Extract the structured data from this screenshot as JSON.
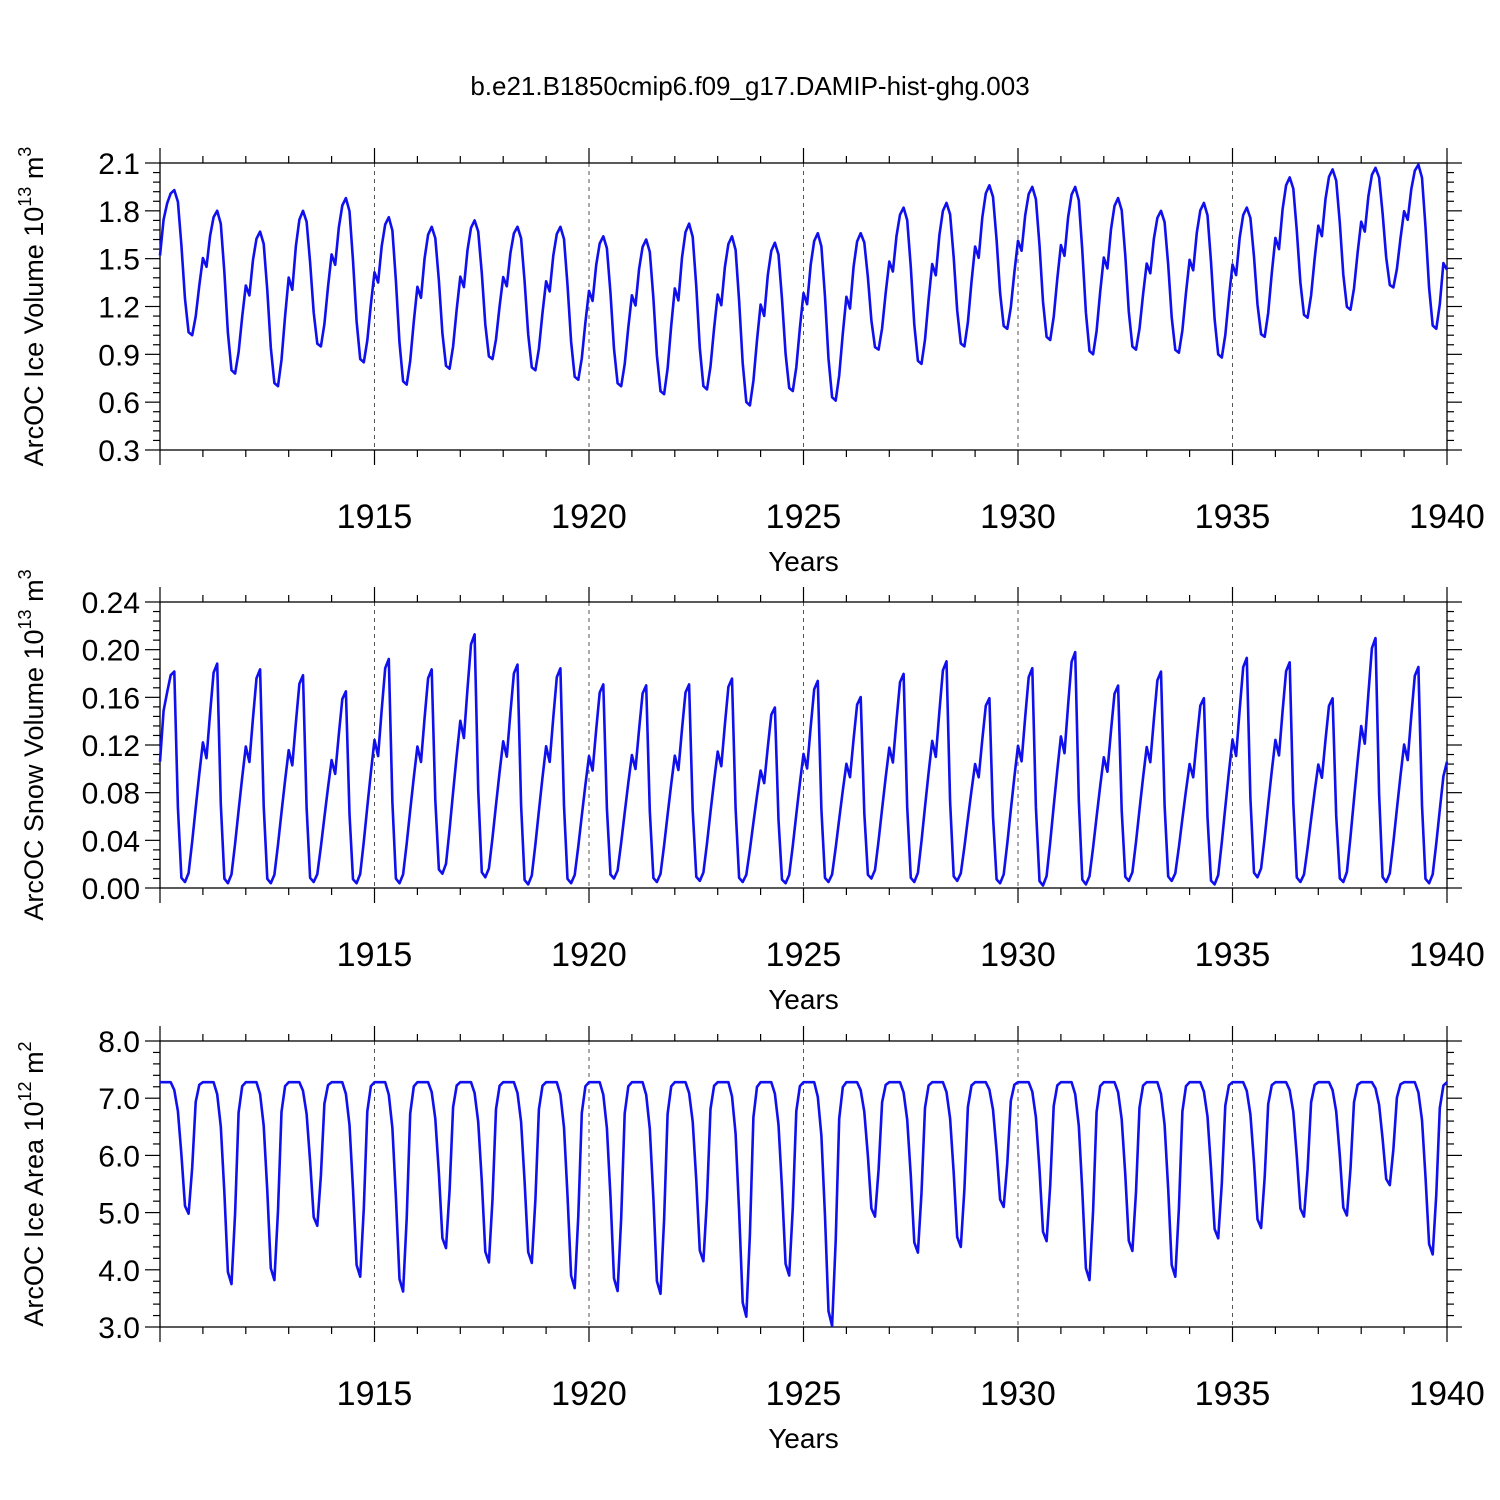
{
  "title": "b.e21.B1850cmip6.f09_g17.DAMIP-hist-ghg.003",
  "chart_data": [
    {
      "type": "line",
      "name": "ice-volume",
      "ylabel": "ArcOC Ice Volume 10",
      "ylabel_exp": "13",
      "ylabel_unit": "m",
      "ylabel_unit_exp": "3",
      "xlabel": "Years",
      "xlim": [
        1910,
        1940
      ],
      "ylim": [
        0.3,
        2.1
      ],
      "xticks": [
        "1915",
        "1920",
        "1925",
        "1930",
        "1935",
        "1940"
      ],
      "yticks": [
        "0.3",
        "0.6",
        "0.9",
        "1.2",
        "1.5",
        "1.8",
        "2.1"
      ],
      "grid": "dashed vertical at 5-year ticks",
      "color": "#1010ee",
      "series": [
        {
          "name": "Ice Volume",
          "cycle_max": [
            1.93,
            1.8,
            1.67,
            1.8,
            1.88,
            1.76,
            1.7,
            1.74,
            1.7,
            1.7,
            1.64,
            1.62,
            1.72,
            1.64,
            1.6,
            1.66,
            1.66,
            1.82,
            1.85,
            1.96,
            1.95,
            1.95,
            1.88,
            1.8,
            1.85,
            1.82,
            2.01,
            2.06,
            2.07,
            2.09
          ],
          "cycle_min": [
            1.02,
            0.78,
            0.7,
            0.95,
            0.85,
            0.71,
            0.81,
            0.87,
            0.8,
            0.74,
            0.7,
            0.65,
            0.68,
            0.58,
            0.67,
            0.61,
            0.93,
            0.84,
            0.95,
            1.06,
            0.99,
            0.9,
            0.93,
            0.91,
            0.88,
            1.01,
            1.13,
            1.18,
            1.32,
            1.06
          ],
          "start": 1.52,
          "end": 1.43
        }
      ]
    },
    {
      "type": "line",
      "name": "snow-volume",
      "ylabel": "ArcOC Snow Volume 10",
      "ylabel_exp": "13",
      "ylabel_unit": "m",
      "ylabel_unit_exp": "3",
      "xlabel": "Years",
      "xlim": [
        1910,
        1940
      ],
      "ylim": [
        0.0,
        0.24
      ],
      "xticks": [
        "1915",
        "1920",
        "1925",
        "1930",
        "1935",
        "1940"
      ],
      "yticks": [
        "0.00",
        "0.04",
        "0.08",
        "0.12",
        "0.16",
        "0.20",
        "0.24"
      ],
      "grid": "dashed vertical at 5-year ticks",
      "color": "#1010ee",
      "series": [
        {
          "name": "Snow Volume",
          "cycle_max": [
            0.184,
            0.194,
            0.189,
            0.184,
            0.17,
            0.198,
            0.189,
            0.219,
            0.193,
            0.19,
            0.176,
            0.175,
            0.176,
            0.181,
            0.156,
            0.179,
            0.165,
            0.185,
            0.196,
            0.164,
            0.19,
            0.204,
            0.175,
            0.187,
            0.164,
            0.199,
            0.195,
            0.164,
            0.216,
            0.191
          ],
          "cycle_min": [
            0.005,
            0.004,
            0.004,
            0.005,
            0.004,
            0.004,
            0.012,
            0.009,
            0.003,
            0.004,
            0.008,
            0.005,
            0.006,
            0.005,
            0.004,
            0.005,
            0.008,
            0.005,
            0.006,
            0.004,
            0.002,
            0.003,
            0.006,
            0.006,
            0.003,
            0.009,
            0.005,
            0.005,
            0.005,
            0.004
          ],
          "start": 0.106,
          "end": 0.106
        }
      ]
    },
    {
      "type": "line",
      "name": "ice-area",
      "ylabel": "ArcOC Ice Area 10",
      "ylabel_exp": "12",
      "ylabel_unit": "m",
      "ylabel_unit_exp": "2",
      "xlabel": "Years",
      "xlim": [
        1910,
        1940
      ],
      "ylim": [
        3.0,
        8.0
      ],
      "xticks": [
        "1915",
        "1920",
        "1925",
        "1930",
        "1935",
        "1940"
      ],
      "yticks": [
        "3.0",
        "4.0",
        "5.0",
        "6.0",
        "7.0",
        "8.0"
      ],
      "grid": "dashed vertical at 5-year ticks",
      "color": "#1010ee",
      "series": [
        {
          "name": "Ice Area",
          "cycle_max": [
            7.28,
            7.28,
            7.28,
            7.28,
            7.28,
            7.28,
            7.28,
            7.28,
            7.28,
            7.28,
            7.28,
            7.28,
            7.28,
            7.28,
            7.28,
            7.28,
            7.28,
            7.28,
            7.28,
            7.28,
            7.28,
            7.28,
            7.28,
            7.28,
            7.28,
            7.28,
            7.28,
            7.28,
            7.28,
            7.28
          ],
          "cycle_min": [
            4.98,
            3.75,
            3.82,
            4.77,
            3.88,
            3.62,
            4.38,
            4.13,
            4.12,
            3.68,
            3.63,
            3.58,
            4.15,
            3.18,
            3.9,
            3.02,
            4.93,
            4.3,
            4.4,
            5.1,
            4.5,
            3.82,
            4.33,
            3.88,
            4.55,
            4.73,
            4.93,
            4.95,
            5.48,
            4.27
          ],
          "start": 7.28,
          "end": 7.28
        }
      ]
    }
  ]
}
